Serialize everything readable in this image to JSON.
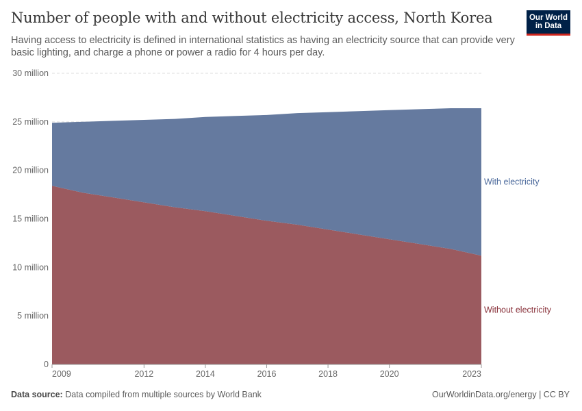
{
  "header": {
    "title": "Number of people with and without electricity access, North Korea",
    "subtitle": "Having access to electricity is defined in international statistics as having an electricity source that can provide very basic lighting, and charge a phone or power a radio for 4 hours per day."
  },
  "logo": {
    "line1": "Our World",
    "line2": "in Data",
    "bg_color": "#002147",
    "accent_color": "#ce261e"
  },
  "footer": {
    "source_label": "Data source:",
    "source_text": " Data compiled from multiple sources by World Bank",
    "link": "OurWorldinData.org/energy | CC BY"
  },
  "chart_data": {
    "type": "area",
    "stacked": true,
    "x": [
      2009,
      2010,
      2011,
      2012,
      2013,
      2014,
      2015,
      2016,
      2017,
      2018,
      2019,
      2020,
      2021,
      2022,
      2023
    ],
    "series": [
      {
        "name": "Without electricity",
        "color": "#9b5a5f",
        "values": [
          18.4,
          17.7,
          17.2,
          16.7,
          16.2,
          15.8,
          15.3,
          14.8,
          14.4,
          13.9,
          13.4,
          12.9,
          12.4,
          11.9,
          11.2
        ]
      },
      {
        "name": "With electricity",
        "color": "#657a9f",
        "values": [
          6.5,
          7.3,
          7.9,
          8.5,
          9.1,
          9.7,
          10.3,
          10.9,
          11.5,
          12.1,
          12.7,
          13.3,
          13.9,
          14.5,
          15.2
        ]
      }
    ],
    "y_ticks": [
      0,
      5,
      10,
      15,
      20,
      25,
      30
    ],
    "y_tick_labels": [
      "0",
      "5 million",
      "10 million",
      "15 million",
      "20 million",
      "25 million",
      "30 million"
    ],
    "x_ticks": [
      2009,
      2012,
      2014,
      2016,
      2018,
      2020,
      2023
    ],
    "x_tick_labels": [
      "2009",
      "2012",
      "2014",
      "2016",
      "2018",
      "2020",
      "2023"
    ],
    "xlim": [
      2009,
      2023
    ],
    "ylim": [
      0,
      30
    ],
    "grid": true,
    "legend_placement": "right"
  }
}
